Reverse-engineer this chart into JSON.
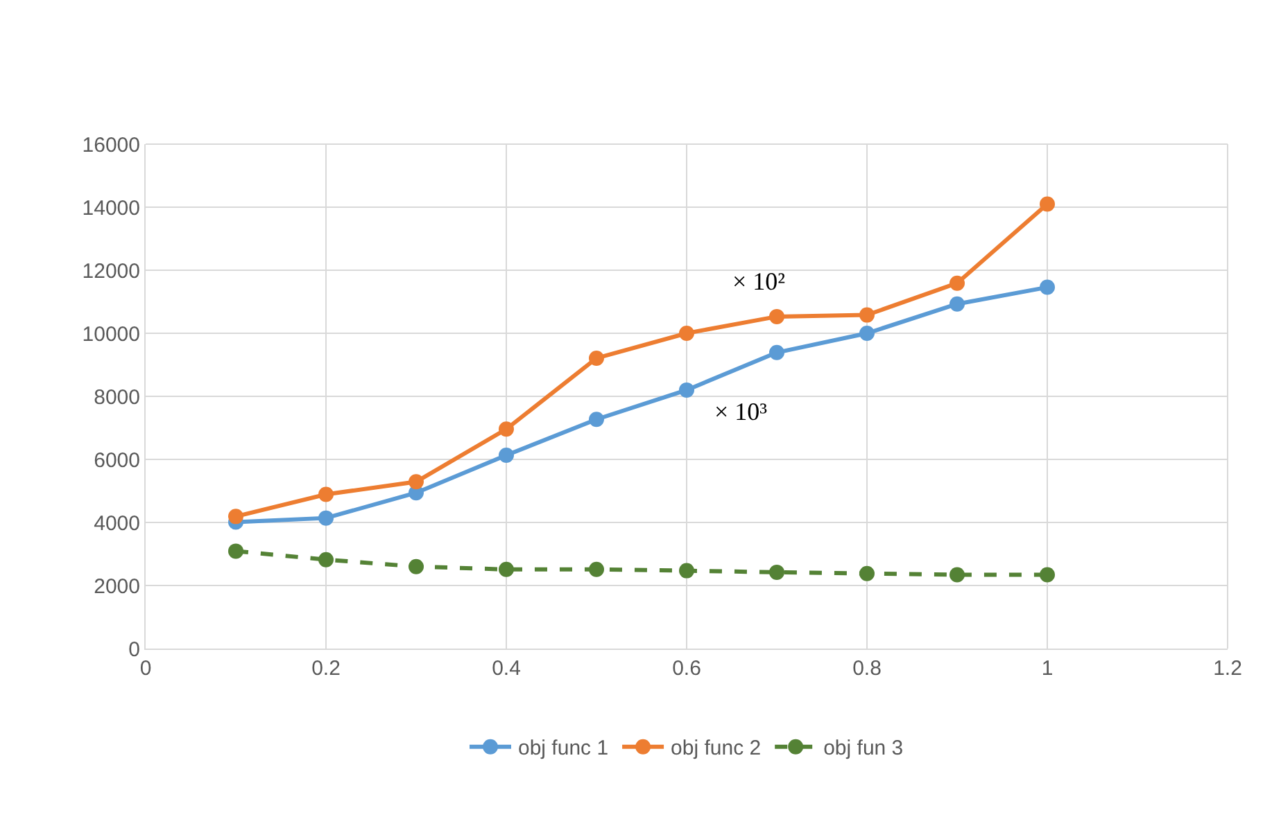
{
  "chart_data": {
    "type": "line",
    "x": [
      0.1,
      0.2,
      0.3,
      0.4,
      0.5,
      0.6,
      0.7,
      0.8,
      0.9,
      1.0
    ],
    "series": [
      {
        "name": "obj func 1",
        "color": "#5b9bd5",
        "values": [
          4010,
          4140,
          4940,
          6130,
          7270,
          8200,
          9390,
          10000,
          10930,
          11460
        ]
      },
      {
        "name": "obj func 2",
        "color": "#ed7d31",
        "values": [
          4190,
          4890,
          5290,
          6960,
          9210,
          10000,
          10530,
          10580,
          11590,
          14100
        ]
      },
      {
        "name": "obj fun 3",
        "color": "#548235",
        "line_style": "dashed",
        "values": [
          3090,
          2820,
          2600,
          2510,
          2510,
          2470,
          2420,
          2380,
          2340,
          2340
        ]
      }
    ],
    "annotations": [
      "× 10²",
      "× 10³"
    ],
    "xlim": [
      0,
      1.2
    ],
    "xticks": [
      0,
      0.2,
      0.4,
      0.6,
      0.8,
      1,
      1.2
    ],
    "ylim": [
      0,
      16000
    ],
    "yticks": [
      0,
      2000,
      4000,
      6000,
      8000,
      10000,
      12000,
      14000,
      16000
    ],
    "grid": true,
    "legend": "bottom",
    "marker": "circle",
    "line_style": "solid"
  }
}
